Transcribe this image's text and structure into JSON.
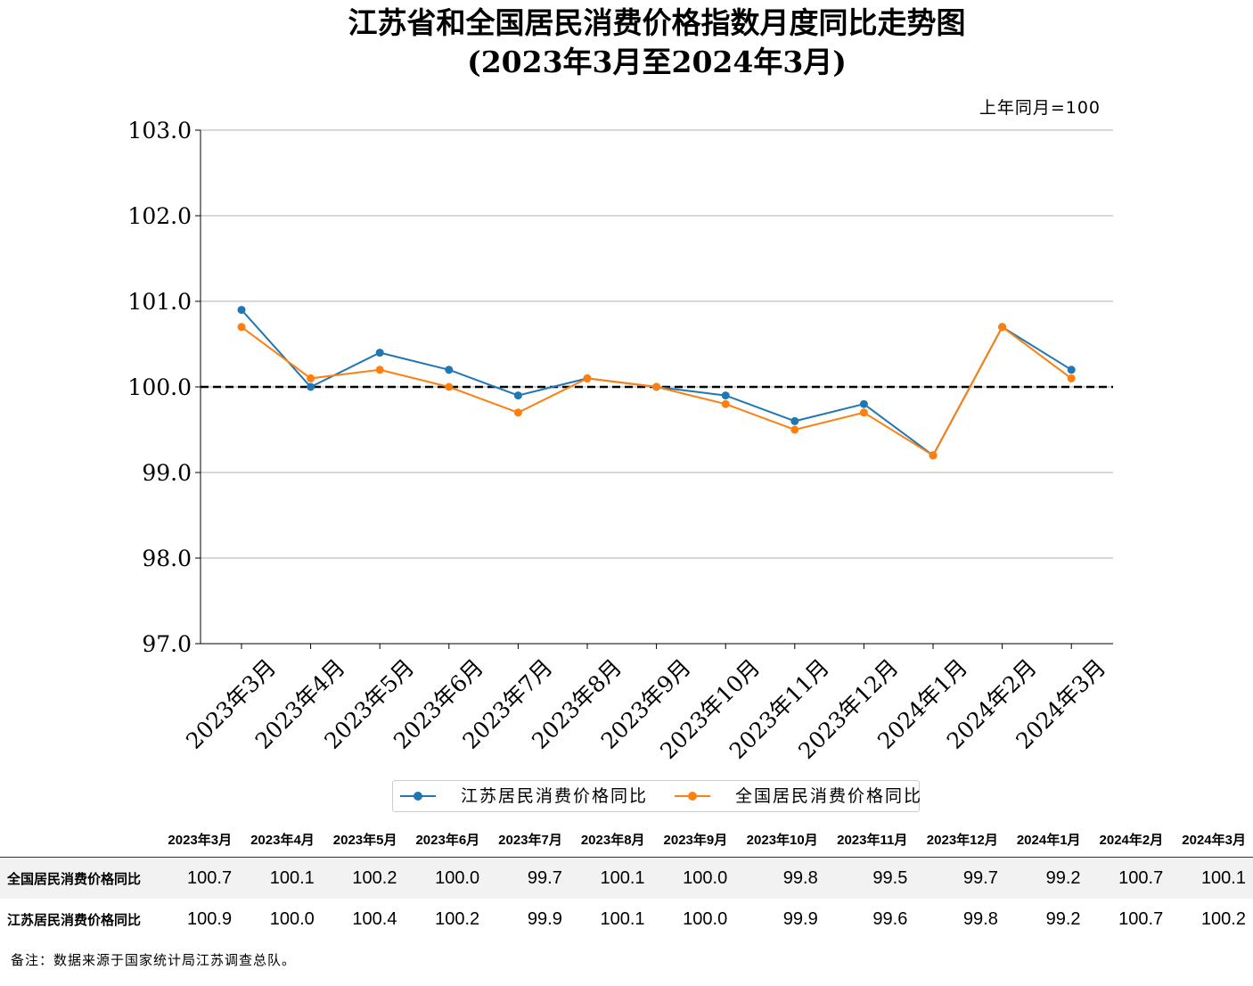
{
  "title": "江苏省和全国居民消费价格指数月度同比走势图",
  "subtitle": "(2023年3月至2024年3月)",
  "unit_note": "上年同月=100",
  "chart_data": {
    "type": "line",
    "categories": [
      "2023年3月",
      "2023年4月",
      "2023年5月",
      "2023年6月",
      "2023年7月",
      "2023年8月",
      "2023年9月",
      "2023年10月",
      "2023年11月",
      "2023年12月",
      "2024年1月",
      "2024年2月",
      "2024年3月"
    ],
    "series": [
      {
        "name": "江苏居民消费价格同比",
        "color": "#1f77b4",
        "values": [
          100.9,
          100.0,
          100.4,
          100.2,
          99.9,
          100.1,
          100.0,
          99.9,
          99.6,
          99.8,
          99.2,
          100.7,
          100.2
        ]
      },
      {
        "name": "全国居民消费价格同比",
        "color": "#ff7f0e",
        "values": [
          100.7,
          100.1,
          100.2,
          100.0,
          99.7,
          100.1,
          100.0,
          99.8,
          99.5,
          99.7,
          99.2,
          100.7,
          100.1
        ]
      }
    ],
    "ylim": [
      97.0,
      103.0
    ],
    "yticks": [
      "97.0",
      "98.0",
      "99.0",
      "100.0",
      "101.0",
      "102.0",
      "103.0"
    ],
    "reference_line": 100.0,
    "grid": "horizontal",
    "legend_position": "bottom"
  },
  "table": {
    "headers": [
      "",
      "2023年3月",
      "2023年4月",
      "2023年5月",
      "2023年6月",
      "2023年7月",
      "2023年8月",
      "2023年9月",
      "2023年10月",
      "2023年11月",
      "2023年12月",
      "2024年1月",
      "2024年2月",
      "2024年3月"
    ],
    "rows": [
      [
        "全国居民消费价格同比",
        "100.7",
        "100.1",
        "100.2",
        "100.0",
        "99.7",
        "100.1",
        "100.0",
        "99.8",
        "99.5",
        "99.7",
        "99.2",
        "100.7",
        "100.1"
      ],
      [
        "江苏居民消费价格同比",
        "100.9",
        "100.0",
        "100.4",
        "100.2",
        "99.9",
        "100.1",
        "100.0",
        "99.9",
        "99.6",
        "99.8",
        "99.2",
        "100.7",
        "100.2"
      ]
    ]
  },
  "note": "备注：数据来源于国家统计局江苏调查总队。"
}
